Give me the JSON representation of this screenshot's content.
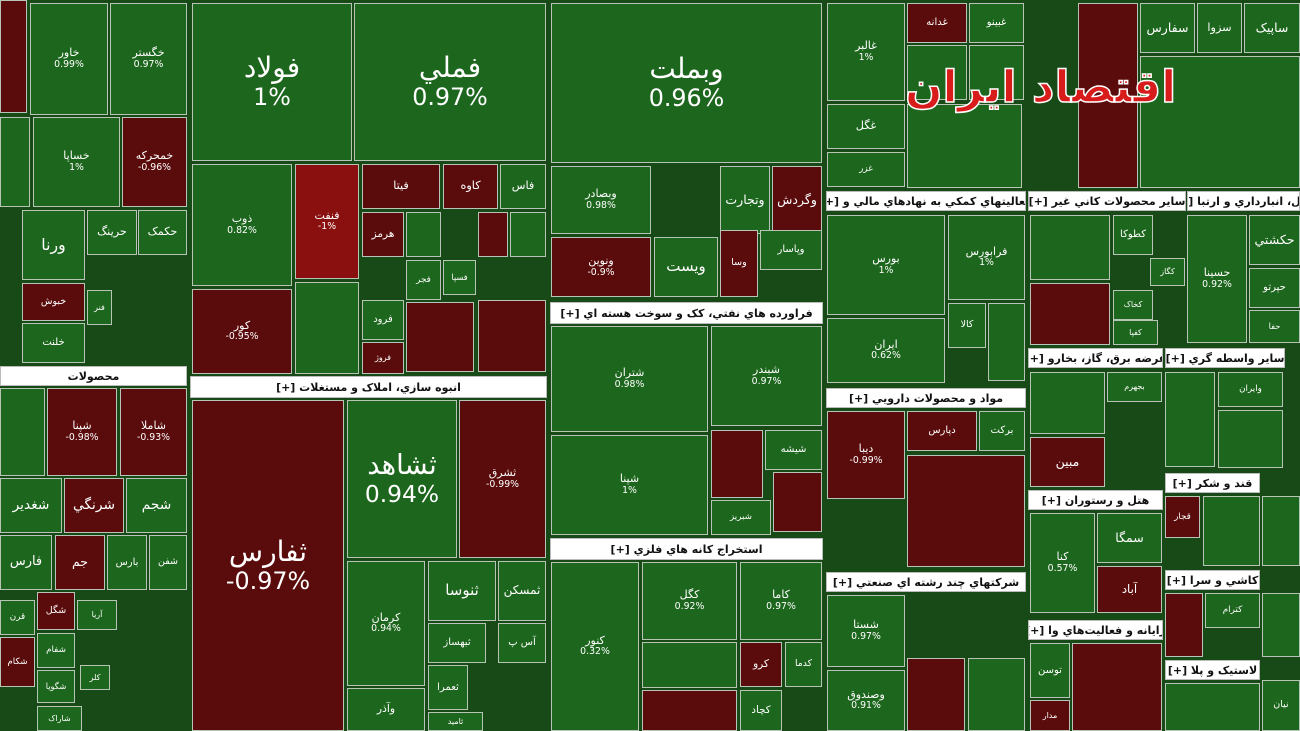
{
  "headers": [
    "محصولات",
    "انبوه سازي، املاک و مستغلات [+]",
    "فراورده هاي نفتي، کک و سوخت هسته اي [+]",
    "استخراج کانه هاي فلزي [+]",
    "فعاليتهاي کمکي به نهادهاي مالي و [+]",
    "مواد و محصولات دارويي [+]",
    "شرکتهاي چند رشته اي صنعتي [+]",
    "ساير محصولات کاني غير [+]",
    "نقل، انبارداري و ارتبا [+]",
    "عرضه برق، گاز، بخارو [+]",
    "ساير واسطه گري [+]",
    "هتل و رستوران [+]",
    "قند و شکر [+]",
    "کاشي و سرا [+]",
    "رايانه و فعاليت‌هاي وا [+]",
    "لاستيک و پلا [+]"
  ],
  "tiles": [
    {
      "label": "خاور",
      "change": "0.99%"
    },
    {
      "label": "خگستر",
      "change": "0.97%"
    },
    {
      "label": "خساپا",
      "change": "1%"
    },
    {
      "label": "خمحرکه",
      "change": "-0.96%"
    },
    {
      "label": "حرينگ"
    },
    {
      "label": "حکمک"
    },
    {
      "label": "ورنا"
    },
    {
      "label": "خبوش"
    },
    {
      "label": "خلنت"
    },
    {
      "label": "فنر"
    },
    {
      "label": "شپنا",
      "change": "-0.98%"
    },
    {
      "label": "شاملا",
      "change": "-0.93%"
    },
    {
      "label": "شغدير"
    },
    {
      "label": "شرنگي"
    },
    {
      "label": "شجم"
    },
    {
      "label": "فارس"
    },
    {
      "label": "جم"
    },
    {
      "label": "بارس"
    },
    {
      "label": "شفن"
    },
    {
      "label": "شگل"
    },
    {
      "label": "آريا"
    },
    {
      "label": "قرن"
    },
    {
      "label": "شفام"
    },
    {
      "label": "شکام"
    },
    {
      "label": "کلر"
    },
    {
      "label": "شگويا"
    },
    {
      "label": "شاراک"
    },
    {
      "label": "فولاد",
      "change": "1%"
    },
    {
      "label": "فملي",
      "change": "0.97%"
    },
    {
      "label": "ذوب",
      "change": "0.82%"
    },
    {
      "label": "فنفت",
      "change": "-1%"
    },
    {
      "label": "فيتا"
    },
    {
      "label": "کاوه"
    },
    {
      "label": "فاس"
    },
    {
      "label": "کور",
      "change": "-0.95%"
    },
    {
      "label": "هرمز"
    },
    {
      "label": "فجر"
    },
    {
      "label": "فسپا"
    },
    {
      "label": "فرود"
    },
    {
      "label": "فروژ"
    },
    {
      "label": "ثفارس",
      "change": "-0.97%"
    },
    {
      "label": "ثشاهد",
      "change": "0.94%"
    },
    {
      "label": "ثشرق",
      "change": "-0.99%"
    },
    {
      "label": "کرمان",
      "change": "0.94%"
    },
    {
      "label": "ثنوسا"
    },
    {
      "label": "ثمسکن"
    },
    {
      "label": "ثبهساز"
    },
    {
      "label": "آس پ"
    },
    {
      "label": "ثعمرا"
    },
    {
      "label": "وآذر"
    },
    {
      "label": "ثامید"
    },
    {
      "label": "وبملت",
      "change": "0.96%"
    },
    {
      "label": "وبصادر",
      "change": "0.98%"
    },
    {
      "label": "وتجارت"
    },
    {
      "label": "وگردش"
    },
    {
      "label": "ونوين",
      "change": "-0.9%"
    },
    {
      "label": "ويست"
    },
    {
      "label": "وسا"
    },
    {
      "label": "وپاسار"
    },
    {
      "label": "شتران",
      "change": "0.98%"
    },
    {
      "label": "شبندر",
      "change": "0.97%"
    },
    {
      "label": "شپنا",
      "change": "1%"
    },
    {
      "label": "شبريز"
    },
    {
      "label": "شيشه"
    },
    {
      "label": "کنور",
      "change": "0.32%"
    },
    {
      "label": "کگل",
      "change": "0.92%"
    },
    {
      "label": "کاما",
      "change": "0.97%"
    },
    {
      "label": "کرو"
    },
    {
      "label": "کدما"
    },
    {
      "label": "کچاد"
    },
    {
      "label": "غالبر",
      "change": "1%"
    },
    {
      "label": "غدانه"
    },
    {
      "label": "غبينو"
    },
    {
      "label": "غگل"
    },
    {
      "label": "غزر"
    },
    {
      "label": "بورس",
      "change": "1%"
    },
    {
      "label": "فرابورس",
      "change": "1%"
    },
    {
      "label": "ايران",
      "change": "0.62%"
    },
    {
      "label": "کالا"
    },
    {
      "label": "ديبا",
      "change": "-0.99%"
    },
    {
      "label": "دپارس"
    },
    {
      "label": "برکت"
    },
    {
      "label": "شستا",
      "change": "0.97%"
    },
    {
      "label": "وصندوق",
      "change": "0.91%"
    },
    {
      "label": "کطوکا"
    },
    {
      "label": "کگاز"
    },
    {
      "label": "کخاک"
    },
    {
      "label": "کفپا"
    },
    {
      "label": "بجهرم"
    },
    {
      "label": "مبين"
    },
    {
      "label": "کنا",
      "change": "0.57%"
    },
    {
      "label": "سمگا"
    },
    {
      "label": "آباد"
    },
    {
      "label": "توسن"
    },
    {
      "label": "مدار"
    },
    {
      "label": "سفارس"
    },
    {
      "label": "سزوا"
    },
    {
      "label": "ساپيک"
    },
    {
      "label": "حسينا",
      "change": "0.92%"
    },
    {
      "label": "حکشتي"
    },
    {
      "label": "حپرتو"
    },
    {
      "label": "حفا"
    },
    {
      "label": "وايران"
    },
    {
      "label": "قجار"
    },
    {
      "label": "کترام"
    },
    {
      "label": "نيان"
    }
  ],
  "logo": "اقتصاد ایران"
}
